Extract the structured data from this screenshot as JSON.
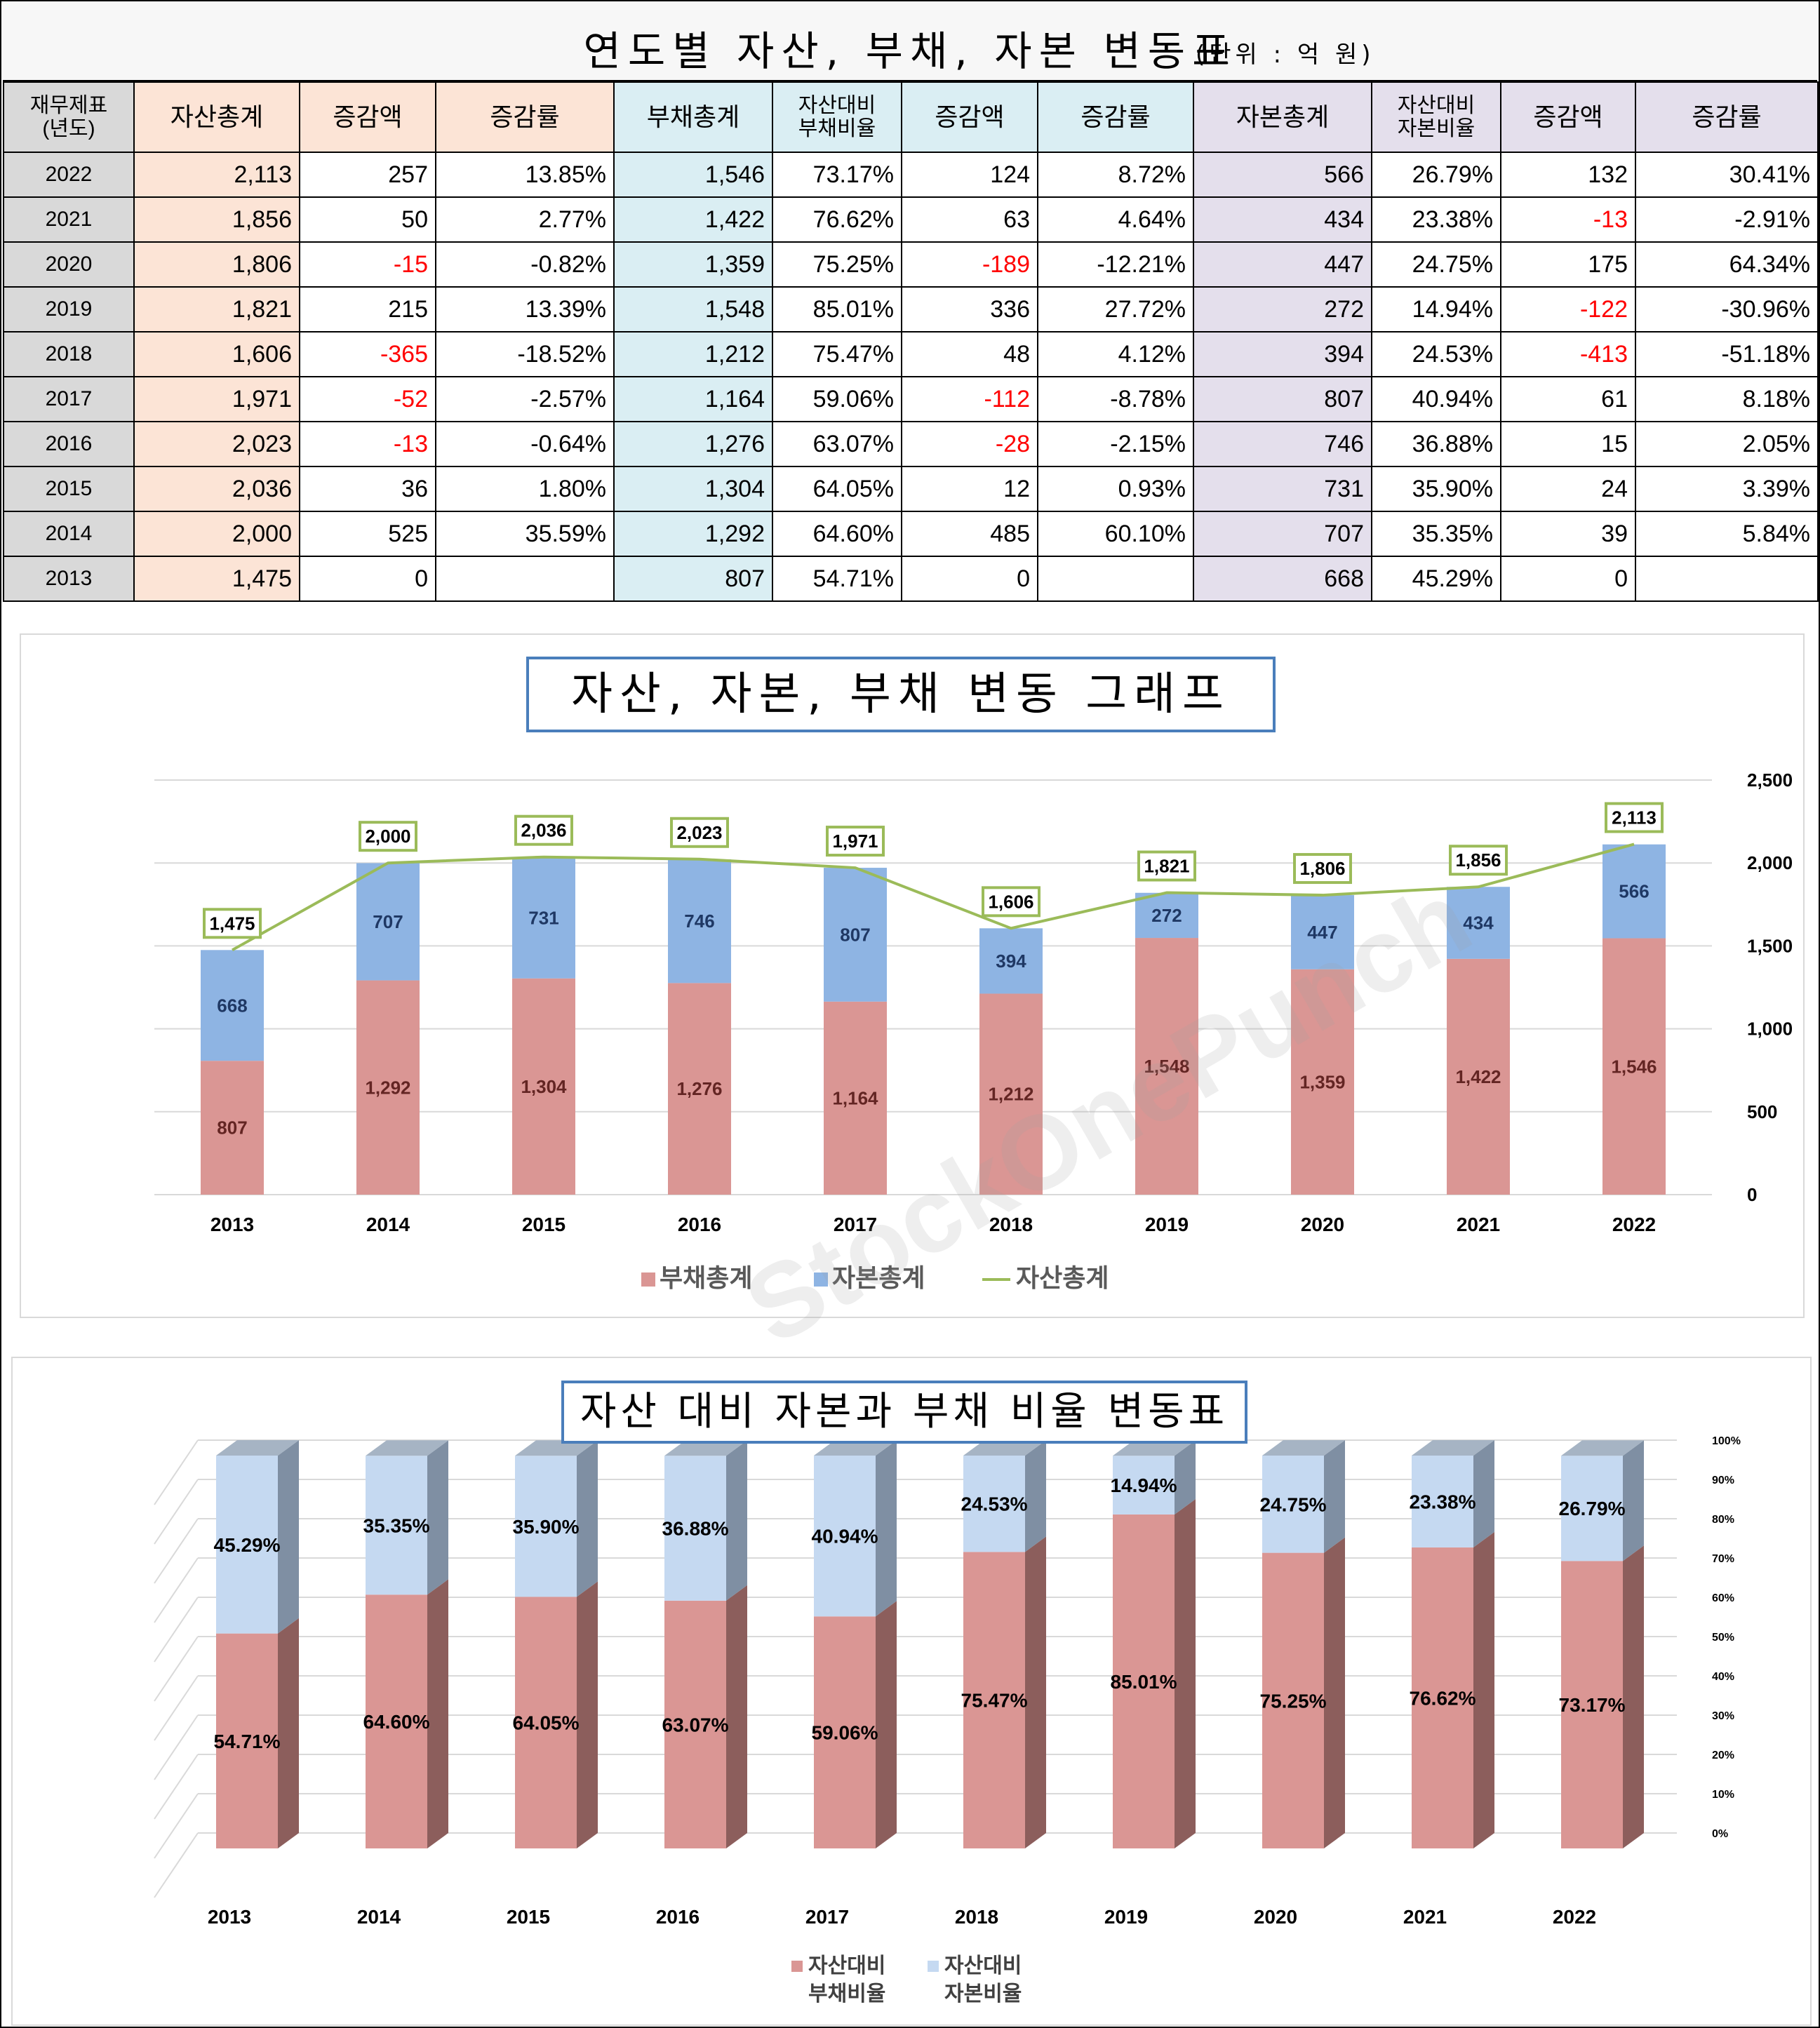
{
  "table": {
    "title": "연도별 자산, 부채, 자본 변동표",
    "unit": "(단위 : 억 원)",
    "headers": [
      "재무제표\n(년도)",
      "자산총계",
      "증감액",
      "증감률",
      "부채총계",
      "자산대비\n부채비율",
      "증감액",
      "증감률",
      "자본총계",
      "자산대비\n자본비율",
      "증감액",
      "증감률"
    ],
    "rows": [
      [
        "2022",
        "2,113",
        "257",
        "13.85%",
        "1,546",
        "73.17%",
        "124",
        "8.72%",
        "566",
        "26.79%",
        "132",
        "30.41%"
      ],
      [
        "2021",
        "1,856",
        "50",
        "2.77%",
        "1,422",
        "76.62%",
        "63",
        "4.64%",
        "434",
        "23.38%",
        "-13",
        "-2.91%"
      ],
      [
        "2020",
        "1,806",
        "-15",
        "-0.82%",
        "1,359",
        "75.25%",
        "-189",
        "-12.21%",
        "447",
        "24.75%",
        "175",
        "64.34%"
      ],
      [
        "2019",
        "1,821",
        "215",
        "13.39%",
        "1,548",
        "85.01%",
        "336",
        "27.72%",
        "272",
        "14.94%",
        "-122",
        "-30.96%"
      ],
      [
        "2018",
        "1,606",
        "-365",
        "-18.52%",
        "1,212",
        "75.47%",
        "48",
        "4.12%",
        "394",
        "24.53%",
        "-413",
        "-51.18%"
      ],
      [
        "2017",
        "1,971",
        "-52",
        "-2.57%",
        "1,164",
        "59.06%",
        "-112",
        "-8.78%",
        "807",
        "40.94%",
        "61",
        "8.18%"
      ],
      [
        "2016",
        "2,023",
        "-13",
        "-0.64%",
        "1,276",
        "63.07%",
        "-28",
        "-2.15%",
        "746",
        "36.88%",
        "15",
        "2.05%"
      ],
      [
        "2015",
        "2,036",
        "36",
        "1.80%",
        "1,304",
        "64.05%",
        "12",
        "0.93%",
        "731",
        "35.90%",
        "24",
        "3.39%"
      ],
      [
        "2014",
        "2,000",
        "525",
        "35.59%",
        "1,292",
        "64.60%",
        "485",
        "60.10%",
        "707",
        "35.35%",
        "39",
        "5.84%"
      ],
      [
        "2013",
        "1,475",
        "0",
        "",
        "807",
        "54.71%",
        "0",
        "",
        "668",
        "45.29%",
        "0",
        ""
      ]
    ]
  },
  "watermark": "StockOnePunch",
  "colors": {
    "liability": "#da9694",
    "equity": "#8eb4e3",
    "asset_line": "#9bbb59",
    "ratio_liability": "#da9694",
    "ratio_equity": "#c5d9f1"
  },
  "chart_data": [
    {
      "type": "bar",
      "stacked": true,
      "title": "자산, 자본, 부채 변동 그래프",
      "categories": [
        "2013",
        "2014",
        "2015",
        "2016",
        "2017",
        "2018",
        "2019",
        "2020",
        "2021",
        "2022"
      ],
      "series": [
        {
          "name": "부채총계",
          "kind": "bar",
          "values": [
            807,
            1292,
            1304,
            1276,
            1164,
            1212,
            1548,
            1359,
            1422,
            1546
          ]
        },
        {
          "name": "자본총계",
          "kind": "bar",
          "values": [
            668,
            707,
            731,
            746,
            807,
            394,
            272,
            447,
            434,
            566
          ]
        },
        {
          "name": "자산총계",
          "kind": "line",
          "values": [
            1475,
            2000,
            2036,
            2023,
            1971,
            1606,
            1821,
            1806,
            1856,
            2113
          ]
        }
      ],
      "ylim": [
        0,
        2500
      ],
      "yticks": [
        "0",
        "500",
        "1,000",
        "1,500",
        "2,000",
        "2,500"
      ],
      "y_axis_side": "right",
      "grid": true,
      "legend_position": "bottom"
    },
    {
      "type": "bar",
      "stacked": true,
      "percent": true,
      "three_d": true,
      "title": "자산 대비 자본과 부채 비율 변동표",
      "categories": [
        "2013",
        "2014",
        "2015",
        "2016",
        "2017",
        "2018",
        "2019",
        "2020",
        "2021",
        "2022"
      ],
      "series": [
        {
          "name": "자산대비\n부채비율",
          "values": [
            54.71,
            64.6,
            64.05,
            63.07,
            59.06,
            75.47,
            85.01,
            75.25,
            76.62,
            73.17
          ]
        },
        {
          "name": "자산대비\n자본비율",
          "values": [
            45.29,
            35.35,
            35.9,
            36.88,
            40.94,
            24.53,
            14.94,
            24.75,
            23.38,
            26.79
          ]
        }
      ],
      "ylim": [
        0,
        100
      ],
      "yticks": [
        "0%",
        "10%",
        "20%",
        "30%",
        "40%",
        "50%",
        "60%",
        "70%",
        "80%",
        "90%",
        "100%"
      ],
      "y_axis_side": "right",
      "grid": true,
      "legend_position": "bottom"
    }
  ]
}
